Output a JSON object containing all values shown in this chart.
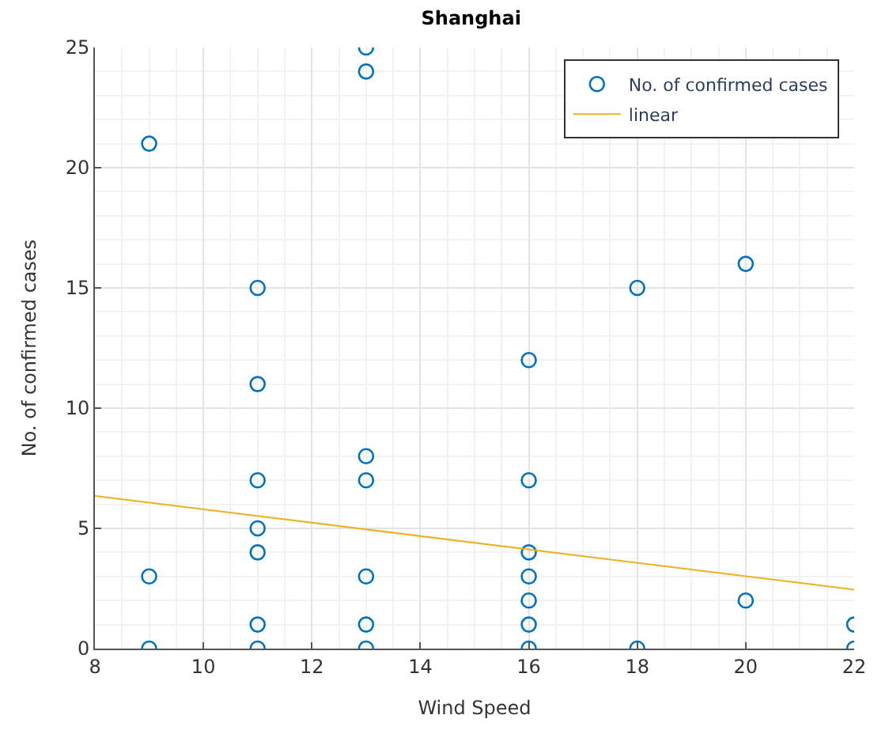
{
  "chart_data": {
    "type": "scatter",
    "title": "Shanghai",
    "xlabel": "Wind Speed",
    "ylabel": "No. of confirmed cases",
    "series": [
      {
        "name": "No. of confirmed cases",
        "color": "#0072bd",
        "marker": "circle",
        "x": [
          9,
          9,
          9,
          11,
          11,
          11,
          11,
          11,
          11,
          11,
          13,
          13,
          13,
          13,
          13,
          13,
          13,
          16,
          16,
          16,
          16,
          16,
          16,
          16,
          18,
          18,
          20,
          20,
          22,
          22
        ],
        "values": [
          21,
          3,
          0,
          15,
          11,
          7,
          5,
          4,
          1,
          0,
          25,
          24,
          8,
          7,
          3,
          1,
          0,
          12,
          7,
          4,
          3,
          2,
          1,
          0,
          15,
          0,
          16,
          2,
          1,
          0
        ]
      },
      {
        "name": "linear",
        "type": "line",
        "color": "#edb120",
        "marker": "none",
        "x": [
          8,
          22
        ],
        "values": [
          6.35,
          2.45
        ]
      }
    ],
    "xlim": [
      8,
      22
    ],
    "xticks": [
      8,
      10,
      12,
      14,
      16,
      18,
      20,
      22
    ],
    "ylim": [
      0,
      25
    ],
    "yticks": [
      0,
      5,
      10,
      15,
      20,
      25
    ],
    "grid": true,
    "legend": "top right"
  }
}
